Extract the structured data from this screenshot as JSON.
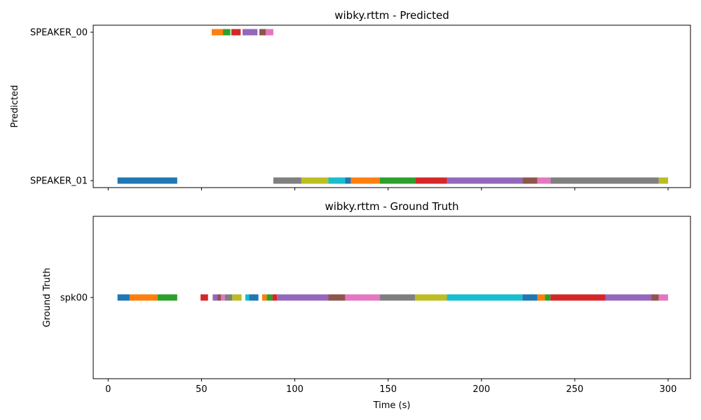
{
  "chart_data": [
    {
      "type": "broken-barh",
      "title": "wibky.rttm - Predicted",
      "ylabel": "Predicted",
      "xlabel": "",
      "xlim": [
        -8,
        312
      ],
      "x_ticks": [
        0,
        50,
        100,
        150,
        200,
        250,
        300
      ],
      "x_tick_labels_shown": false,
      "speakers": [
        "SPEAKER_00",
        "SPEAKER_01"
      ],
      "segments": [
        {
          "speaker": "SPEAKER_00",
          "start": 55.5,
          "end": 61.5,
          "color": "#ff7f0e"
        },
        {
          "speaker": "SPEAKER_00",
          "start": 61.5,
          "end": 65.5,
          "color": "#2ca02c"
        },
        {
          "speaker": "SPEAKER_00",
          "start": 66.0,
          "end": 71.0,
          "color": "#d62728"
        },
        {
          "speaker": "SPEAKER_00",
          "start": 72.0,
          "end": 80.0,
          "color": "#9467bd"
        },
        {
          "speaker": "SPEAKER_00",
          "start": 81.0,
          "end": 84.5,
          "color": "#8c564b"
        },
        {
          "speaker": "SPEAKER_00",
          "start": 84.5,
          "end": 88.5,
          "color": "#e377c2"
        },
        {
          "speaker": "SPEAKER_01",
          "start": 5.0,
          "end": 37.0,
          "color": "#1f77b4"
        },
        {
          "speaker": "SPEAKER_01",
          "start": 88.5,
          "end": 103.5,
          "color": "#7f7f7f"
        },
        {
          "speaker": "SPEAKER_01",
          "start": 103.5,
          "end": 118.0,
          "color": "#bcbd22"
        },
        {
          "speaker": "SPEAKER_01",
          "start": 118.0,
          "end": 127.0,
          "color": "#17becf"
        },
        {
          "speaker": "SPEAKER_01",
          "start": 127.0,
          "end": 130.0,
          "color": "#1f77b4"
        },
        {
          "speaker": "SPEAKER_01",
          "start": 130.0,
          "end": 145.5,
          "color": "#ff7f0e"
        },
        {
          "speaker": "SPEAKER_01",
          "start": 145.5,
          "end": 164.5,
          "color": "#2ca02c"
        },
        {
          "speaker": "SPEAKER_01",
          "start": 164.5,
          "end": 181.5,
          "color": "#d62728"
        },
        {
          "speaker": "SPEAKER_01",
          "start": 181.5,
          "end": 222.0,
          "color": "#9467bd"
        },
        {
          "speaker": "SPEAKER_01",
          "start": 222.0,
          "end": 230.0,
          "color": "#8c564b"
        },
        {
          "speaker": "SPEAKER_01",
          "start": 230.0,
          "end": 237.0,
          "color": "#e377c2"
        },
        {
          "speaker": "SPEAKER_01",
          "start": 237.0,
          "end": 295.0,
          "color": "#7f7f7f"
        },
        {
          "speaker": "SPEAKER_01",
          "start": 295.0,
          "end": 300.0,
          "color": "#bcbd22"
        }
      ]
    },
    {
      "type": "broken-barh",
      "title": "wibky.rttm - Ground Truth",
      "ylabel": "Ground Truth",
      "xlabel": "Time (s)",
      "xlim": [
        -8,
        312
      ],
      "x_ticks": [
        0,
        50,
        100,
        150,
        200,
        250,
        300
      ],
      "x_tick_labels_shown": true,
      "speakers": [
        "spk00"
      ],
      "segments": [
        {
          "speaker": "spk00",
          "start": 5.0,
          "end": 11.5,
          "color": "#1f77b4"
        },
        {
          "speaker": "spk00",
          "start": 11.5,
          "end": 26.5,
          "color": "#ff7f0e"
        },
        {
          "speaker": "spk00",
          "start": 26.5,
          "end": 37.0,
          "color": "#2ca02c"
        },
        {
          "speaker": "spk00",
          "start": 49.5,
          "end": 53.5,
          "color": "#d62728"
        },
        {
          "speaker": "spk00",
          "start": 56.0,
          "end": 58.5,
          "color": "#9467bd"
        },
        {
          "speaker": "spk00",
          "start": 58.5,
          "end": 60.5,
          "color": "#8c564b"
        },
        {
          "speaker": "spk00",
          "start": 60.5,
          "end": 62.5,
          "color": "#e377c2"
        },
        {
          "speaker": "spk00",
          "start": 62.5,
          "end": 66.5,
          "color": "#7f7f7f"
        },
        {
          "speaker": "spk00",
          "start": 66.5,
          "end": 71.5,
          "color": "#bcbd22"
        },
        {
          "speaker": "spk00",
          "start": 73.5,
          "end": 75.5,
          "color": "#17becf"
        },
        {
          "speaker": "spk00",
          "start": 75.5,
          "end": 80.5,
          "color": "#1f77b4"
        },
        {
          "speaker": "spk00",
          "start": 82.5,
          "end": 85.0,
          "color": "#ff7f0e"
        },
        {
          "speaker": "spk00",
          "start": 85.0,
          "end": 88.0,
          "color": "#2ca02c"
        },
        {
          "speaker": "spk00",
          "start": 88.0,
          "end": 90.5,
          "color": "#d62728"
        },
        {
          "speaker": "spk00",
          "start": 90.5,
          "end": 118.0,
          "color": "#9467bd"
        },
        {
          "speaker": "spk00",
          "start": 118.0,
          "end": 127.0,
          "color": "#8c564b"
        },
        {
          "speaker": "spk00",
          "start": 127.0,
          "end": 145.5,
          "color": "#e377c2"
        },
        {
          "speaker": "spk00",
          "start": 145.5,
          "end": 164.5,
          "color": "#7f7f7f"
        },
        {
          "speaker": "spk00",
          "start": 164.5,
          "end": 181.5,
          "color": "#bcbd22"
        },
        {
          "speaker": "spk00",
          "start": 181.5,
          "end": 222.0,
          "color": "#17becf"
        },
        {
          "speaker": "spk00",
          "start": 222.0,
          "end": 230.0,
          "color": "#1f77b4"
        },
        {
          "speaker": "spk00",
          "start": 230.0,
          "end": 234.0,
          "color": "#ff7f0e"
        },
        {
          "speaker": "spk00",
          "start": 234.0,
          "end": 237.0,
          "color": "#2ca02c"
        },
        {
          "speaker": "spk00",
          "start": 237.0,
          "end": 266.5,
          "color": "#d62728"
        },
        {
          "speaker": "spk00",
          "start": 266.5,
          "end": 291.0,
          "color": "#9467bd"
        },
        {
          "speaker": "spk00",
          "start": 291.0,
          "end": 295.0,
          "color": "#8c564b"
        },
        {
          "speaker": "spk00",
          "start": 295.0,
          "end": 300.0,
          "color": "#e377c2"
        }
      ]
    }
  ]
}
